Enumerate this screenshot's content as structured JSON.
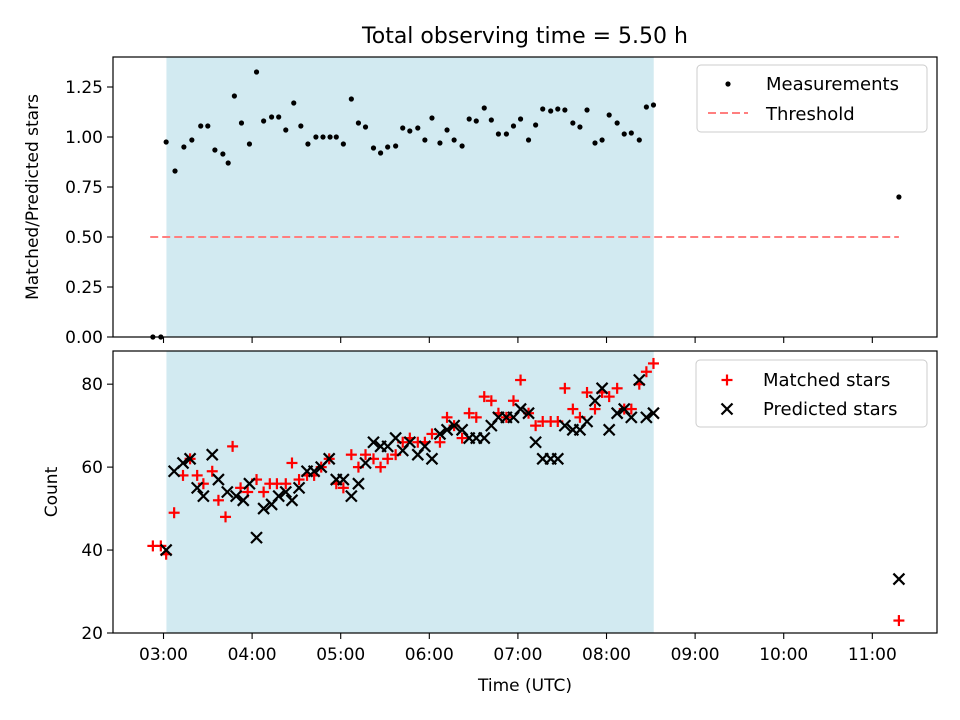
{
  "title": "Total observing time = 5.50 h",
  "xlabel": "Time (UTC)",
  "x_ticks": [
    "03:00",
    "04:00",
    "05:00",
    "06:00",
    "07:00",
    "08:00",
    "09:00",
    "10:00",
    "11:00"
  ],
  "colors": {
    "span": "#add8e6",
    "measurement": "#000000",
    "threshold": "#ff7f7f",
    "matched": "#ff0000",
    "predicted": "#000000"
  },
  "chart_data": [
    {
      "type": "scatter",
      "ylabel": "Matched/Predicted stars",
      "xlim": [
        2.43,
        11.73
      ],
      "ylim": [
        0,
        1.4
      ],
      "y_ticks": [
        "0.00",
        "0.25",
        "0.50",
        "0.75",
        "1.00",
        "1.25"
      ],
      "x_unit": "hours UTC",
      "observing_window": [
        3.033,
        8.533
      ],
      "legend": {
        "position": "upper right",
        "entries": [
          "Measurements",
          "Threshold"
        ]
      },
      "threshold": {
        "name": "Threshold",
        "value": 0.5,
        "x_range": [
          2.85,
          11.3
        ]
      },
      "series": [
        {
          "name": "Measurements",
          "points": [
            [
              2.88,
              0.0
            ],
            [
              2.97,
              0.0
            ],
            [
              3.03,
              0.975
            ],
            [
              3.13,
              0.83
            ],
            [
              3.23,
              0.95
            ],
            [
              3.32,
              0.985
            ],
            [
              3.42,
              1.055
            ],
            [
              3.5,
              1.055
            ],
            [
              3.58,
              0.935
            ],
            [
              3.67,
              0.915
            ],
            [
              3.73,
              0.87
            ],
            [
              3.8,
              1.205
            ],
            [
              3.88,
              1.07
            ],
            [
              3.97,
              0.965
            ],
            [
              4.05,
              1.325
            ],
            [
              4.13,
              1.08
            ],
            [
              4.22,
              1.1
            ],
            [
              4.3,
              1.1
            ],
            [
              4.38,
              1.035
            ],
            [
              4.47,
              1.17
            ],
            [
              4.55,
              1.055
            ],
            [
              4.63,
              0.965
            ],
            [
              4.72,
              1.0
            ],
            [
              4.8,
              1.0
            ],
            [
              4.88,
              1.0
            ],
            [
              4.95,
              1.0
            ],
            [
              5.03,
              0.965
            ],
            [
              5.12,
              1.19
            ],
            [
              5.2,
              1.07
            ],
            [
              5.28,
              1.05
            ],
            [
              5.37,
              0.945
            ],
            [
              5.45,
              0.92
            ],
            [
              5.53,
              0.95
            ],
            [
              5.62,
              0.955
            ],
            [
              5.7,
              1.045
            ],
            [
              5.78,
              1.03
            ],
            [
              5.87,
              1.045
            ],
            [
              5.95,
              0.985
            ],
            [
              6.03,
              1.095
            ],
            [
              6.12,
              0.97
            ],
            [
              6.2,
              1.035
            ],
            [
              6.28,
              0.985
            ],
            [
              6.37,
              0.955
            ],
            [
              6.45,
              1.09
            ],
            [
              6.53,
              1.08
            ],
            [
              6.62,
              1.145
            ],
            [
              6.7,
              1.085
            ],
            [
              6.78,
              1.015
            ],
            [
              6.87,
              1.015
            ],
            [
              6.95,
              1.055
            ],
            [
              7.03,
              1.09
            ],
            [
              7.12,
              0.985
            ],
            [
              7.2,
              1.06
            ],
            [
              7.28,
              1.14
            ],
            [
              7.37,
              1.13
            ],
            [
              7.45,
              1.14
            ],
            [
              7.53,
              1.135
            ],
            [
              7.62,
              1.07
            ],
            [
              7.7,
              1.05
            ],
            [
              7.78,
              1.135
            ],
            [
              7.87,
              0.97
            ],
            [
              7.95,
              0.985
            ],
            [
              8.03,
              1.11
            ],
            [
              8.12,
              1.07
            ],
            [
              8.2,
              1.015
            ],
            [
              8.28,
              1.02
            ],
            [
              8.37,
              0.985
            ],
            [
              8.45,
              1.15
            ],
            [
              8.53,
              1.16
            ],
            [
              11.3,
              0.7
            ]
          ]
        }
      ]
    },
    {
      "type": "scatter",
      "ylabel": "Count",
      "xlim": [
        2.43,
        11.73
      ],
      "ylim": [
        20,
        88
      ],
      "y_ticks": [
        "20",
        "40",
        "60",
        "80"
      ],
      "x_unit": "hours UTC",
      "observing_window": [
        3.033,
        8.533
      ],
      "legend": {
        "position": "upper right",
        "entries": [
          "Matched stars",
          "Predicted stars"
        ]
      },
      "series": [
        {
          "name": "Matched stars",
          "marker": "plus",
          "points": [
            [
              2.88,
              41
            ],
            [
              2.97,
              41
            ],
            [
              3.03,
              39
            ],
            [
              3.12,
              49
            ],
            [
              3.22,
              58
            ],
            [
              3.3,
              62
            ],
            [
              3.38,
              58
            ],
            [
              3.45,
              56
            ],
            [
              3.55,
              59
            ],
            [
              3.62,
              52
            ],
            [
              3.7,
              48
            ],
            [
              3.78,
              65
            ],
            [
              3.87,
              55
            ],
            [
              3.95,
              54
            ],
            [
              4.05,
              57
            ],
            [
              4.13,
              54
            ],
            [
              4.2,
              56
            ],
            [
              4.28,
              56
            ],
            [
              4.38,
              56
            ],
            [
              4.45,
              61
            ],
            [
              4.53,
              57
            ],
            [
              4.62,
              58
            ],
            [
              4.7,
              58
            ],
            [
              4.78,
              60
            ],
            [
              4.87,
              62
            ],
            [
              4.95,
              56
            ],
            [
              5.03,
              55
            ],
            [
              5.12,
              63
            ],
            [
              5.2,
              60
            ],
            [
              5.28,
              63
            ],
            [
              5.37,
              62
            ],
            [
              5.45,
              60
            ],
            [
              5.53,
              62
            ],
            [
              5.62,
              63
            ],
            [
              5.7,
              66
            ],
            [
              5.78,
              67
            ],
            [
              5.87,
              66
            ],
            [
              5.95,
              66
            ],
            [
              6.03,
              68
            ],
            [
              6.12,
              66
            ],
            [
              6.2,
              72
            ],
            [
              6.28,
              70
            ],
            [
              6.37,
              67
            ],
            [
              6.45,
              73
            ],
            [
              6.53,
              72
            ],
            [
              6.62,
              77
            ],
            [
              6.7,
              76
            ],
            [
              6.78,
              73
            ],
            [
              6.87,
              72
            ],
            [
              6.95,
              76
            ],
            [
              7.03,
              81
            ],
            [
              7.12,
              73
            ],
            [
              7.2,
              70
            ],
            [
              7.28,
              71
            ],
            [
              7.37,
              71
            ],
            [
              7.45,
              71
            ],
            [
              7.53,
              79
            ],
            [
              7.62,
              74
            ],
            [
              7.7,
              72
            ],
            [
              7.78,
              78
            ],
            [
              7.87,
              74
            ],
            [
              7.95,
              78
            ],
            [
              8.03,
              77
            ],
            [
              8.12,
              79
            ],
            [
              8.2,
              74
            ],
            [
              8.28,
              74
            ],
            [
              8.37,
              80
            ],
            [
              8.45,
              83
            ],
            [
              8.53,
              85
            ],
            [
              11.3,
              23
            ]
          ]
        },
        {
          "name": "Predicted stars",
          "marker": "x",
          "points": [
            [
              3.03,
              40
            ],
            [
              3.12,
              59
            ],
            [
              3.22,
              61
            ],
            [
              3.3,
              62
            ],
            [
              3.38,
              55
            ],
            [
              3.45,
              53
            ],
            [
              3.55,
              63
            ],
            [
              3.62,
              57
            ],
            [
              3.72,
              54
            ],
            [
              3.82,
              53
            ],
            [
              3.9,
              52
            ],
            [
              3.97,
              56
            ],
            [
              4.05,
              43
            ],
            [
              4.13,
              50
            ],
            [
              4.22,
              51
            ],
            [
              4.3,
              53
            ],
            [
              4.38,
              54
            ],
            [
              4.45,
              52
            ],
            [
              4.53,
              55
            ],
            [
              4.62,
              59
            ],
            [
              4.7,
              59
            ],
            [
              4.78,
              60
            ],
            [
              4.87,
              62
            ],
            [
              4.95,
              57
            ],
            [
              5.03,
              57
            ],
            [
              5.12,
              53
            ],
            [
              5.2,
              56
            ],
            [
              5.28,
              61
            ],
            [
              5.37,
              66
            ],
            [
              5.45,
              65
            ],
            [
              5.53,
              65
            ],
            [
              5.62,
              67
            ],
            [
              5.7,
              64
            ],
            [
              5.78,
              66
            ],
            [
              5.87,
              63
            ],
            [
              5.95,
              65
            ],
            [
              6.03,
              62
            ],
            [
              6.12,
              68
            ],
            [
              6.2,
              69
            ],
            [
              6.28,
              70
            ],
            [
              6.37,
              69
            ],
            [
              6.45,
              67
            ],
            [
              6.53,
              67
            ],
            [
              6.62,
              67
            ],
            [
              6.7,
              70
            ],
            [
              6.78,
              72
            ],
            [
              6.87,
              72
            ],
            [
              6.95,
              72
            ],
            [
              7.03,
              74
            ],
            [
              7.12,
              73
            ],
            [
              7.2,
              66
            ],
            [
              7.28,
              62
            ],
            [
              7.37,
              62
            ],
            [
              7.45,
              62
            ],
            [
              7.53,
              70
            ],
            [
              7.62,
              69
            ],
            [
              7.7,
              69
            ],
            [
              7.78,
              71
            ],
            [
              7.87,
              76
            ],
            [
              7.95,
              79
            ],
            [
              8.03,
              69
            ],
            [
              8.12,
              73
            ],
            [
              8.2,
              74
            ],
            [
              8.28,
              72
            ],
            [
              8.37,
              81
            ],
            [
              8.45,
              72
            ],
            [
              8.53,
              73
            ],
            [
              11.3,
              33
            ]
          ]
        }
      ]
    }
  ]
}
